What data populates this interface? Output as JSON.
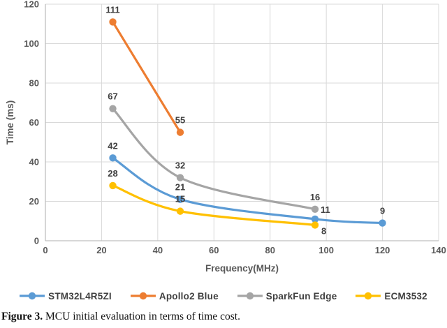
{
  "figure": {
    "caption_label": "Figure 3.",
    "caption_text": " MCU initial evaluation in terms of time cost."
  },
  "chart_data": {
    "type": "line",
    "title": "",
    "xlabel": "Frequency(MHz)",
    "ylabel": "Time (ms)",
    "xlim": [
      0,
      140
    ],
    "ylim": [
      0,
      120
    ],
    "xticks": [
      0,
      20,
      40,
      60,
      80,
      100,
      120,
      140
    ],
    "yticks": [
      0,
      20,
      40,
      60,
      80,
      100,
      120
    ],
    "grid": true,
    "grid_color": "#d9d9d9",
    "axis_line_color": "#bfbfbf",
    "legend_position": "bottom",
    "line_style": "smooth",
    "series": [
      {
        "name": "STM32L4R5ZI",
        "color": "#5B9BD5",
        "points": [
          {
            "x": 24,
            "y": 42,
            "label": "42",
            "label_pos": "above"
          },
          {
            "x": 48,
            "y": 21,
            "label": "21",
            "label_pos": "above"
          },
          {
            "x": 96,
            "y": 11,
            "label": "11",
            "label_pos": "above-right"
          },
          {
            "x": 120,
            "y": 9,
            "label": "9",
            "label_pos": "above"
          }
        ]
      },
      {
        "name": "Apollo2 Blue",
        "color": "#ED7D31",
        "points": [
          {
            "x": 24,
            "y": 111,
            "label": "111",
            "label_pos": "above"
          },
          {
            "x": 48,
            "y": 55,
            "label": "55",
            "label_pos": "above"
          }
        ]
      },
      {
        "name": "SparkFun Edge",
        "color": "#A5A5A5",
        "points": [
          {
            "x": 24,
            "y": 67,
            "label": "67",
            "label_pos": "above"
          },
          {
            "x": 48,
            "y": 32,
            "label": "32",
            "label_pos": "above"
          },
          {
            "x": 96,
            "y": 16,
            "label": "16",
            "label_pos": "above"
          }
        ]
      },
      {
        "name": "ECM3532",
        "color": "#FFC000",
        "points": [
          {
            "x": 24,
            "y": 28,
            "label": "28",
            "label_pos": "above"
          },
          {
            "x": 48,
            "y": 15,
            "label": "15",
            "label_pos": "above"
          },
          {
            "x": 96,
            "y": 8,
            "label": "8",
            "label_pos": "below-right"
          }
        ]
      }
    ]
  }
}
